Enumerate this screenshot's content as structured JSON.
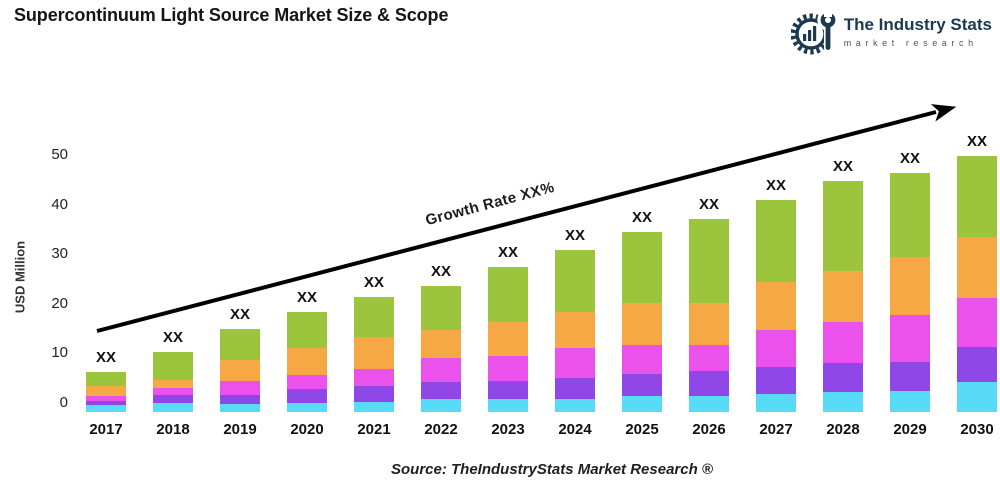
{
  "page": {
    "title": "Supercontinuum Light Source Market Size & Scope"
  },
  "logo": {
    "brand": "The Industry Stats",
    "tagline": "market research",
    "color": "#1c3950"
  },
  "source_note": "Source: TheIndustryStats Market Research ®",
  "chart_data": {
    "type": "bar",
    "stacked": true,
    "title": "Supercontinuum Light Source Market Size & Scope",
    "xlabel": "",
    "ylabel": "USD Million",
    "ylim": [
      0,
      50
    ],
    "yticks": [
      0,
      10,
      20,
      30,
      40,
      50
    ],
    "grid": false,
    "legend_position": "none",
    "annotation": "Growth Rate XX%",
    "categories": [
      "2017",
      "2018",
      "2019",
      "2020",
      "2021",
      "2022",
      "2023",
      "2024",
      "2025",
      "2026",
      "2027",
      "2028",
      "2029",
      "2030"
    ],
    "bar_labels": [
      "XX",
      "XX",
      "XX",
      "XX",
      "XX",
      "XX",
      "XX",
      "XX",
      "XX",
      "XX",
      "XX",
      "XX",
      "XX",
      "XX"
    ],
    "totals_usd_million_est": [
      6.1,
      10.1,
      14.7,
      18.2,
      21.2,
      23.4,
      27.2,
      30.7,
      34.3,
      36.9,
      40.8,
      44.6,
      46.2,
      49.6
    ],
    "series": [
      {
        "name": "segment-cyan",
        "color": "#57dbf7",
        "values": [
          1.1,
          1.5,
          1.4,
          1.6,
          1.8,
          2.4,
          2.4,
          2.4,
          3.0,
          3.0,
          3.4,
          3.8,
          4.0,
          5.8
        ]
      },
      {
        "name": "segment-purple",
        "color": "#8f47e8",
        "values": [
          0.6,
          1.3,
          1.6,
          2.5,
          2.9,
          3.1,
          3.5,
          4.1,
          4.3,
          4.9,
          5.3,
          5.6,
          5.7,
          6.8
        ]
      },
      {
        "name": "segment-magenta",
        "color": "#ea52eb",
        "values": [
          0.8,
          1.3,
          2.5,
          2.7,
          3.3,
          4.6,
          4.7,
          5.6,
          5.5,
          4.9,
          7.0,
          7.9,
          9.1,
          9.5
        ]
      },
      {
        "name": "segment-orange",
        "color": "#f5a843",
        "values": [
          1.4,
          1.3,
          3.7,
          4.9,
          5.8,
          5.2,
          6.4,
          6.9,
          8.0,
          8.1,
          9.2,
          10.0,
          11.2,
          11.8
        ]
      },
      {
        "name": "segment-green",
        "color": "#9bc53d",
        "values": [
          2.2,
          4.7,
          5.5,
          6.5,
          7.4,
          8.1,
          10.2,
          11.7,
          13.5,
          16.0,
          15.9,
          17.3,
          16.2,
          15.7
        ]
      }
    ]
  }
}
